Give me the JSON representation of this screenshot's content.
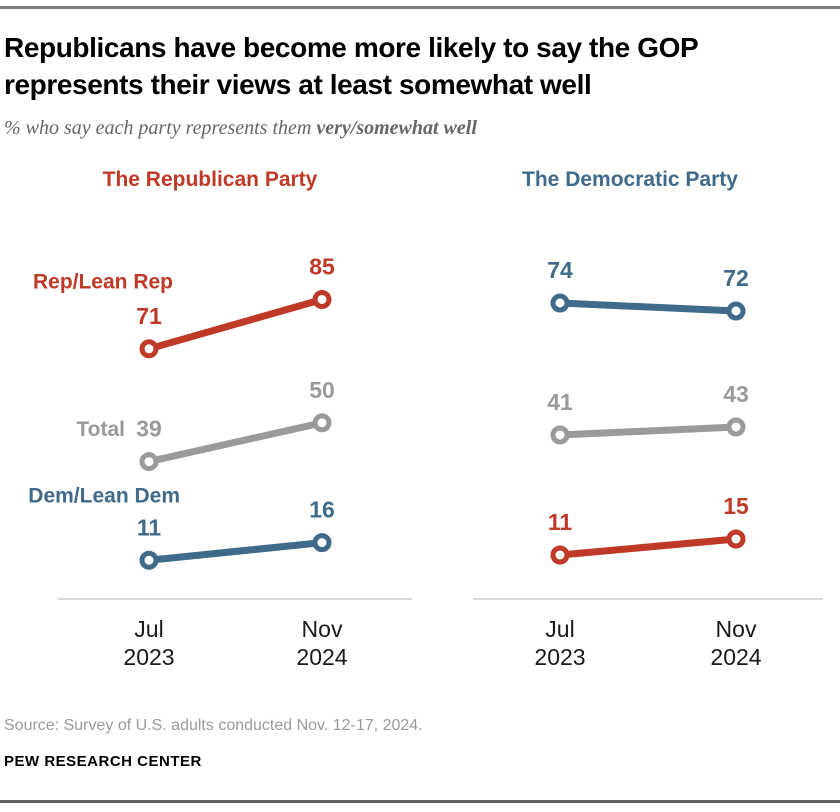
{
  "header": {
    "title": "Republicans have become more likely to say the GOP represents their views at least somewhat well",
    "subtitle_plain": "% who say each party represents them ",
    "subtitle_bold": "very/somewhat well"
  },
  "chart_data": [
    {
      "type": "line",
      "title": "The Republican Party",
      "title_color": "#bf3927",
      "x_labels": [
        [
          "Jul",
          "2023"
        ],
        [
          "Nov",
          "2024"
        ]
      ],
      "ylim": [
        0,
        126
      ],
      "grid": false,
      "series": [
        {
          "name": "Rep/Lean Rep",
          "color": "#bf3927",
          "values": [
            71,
            85
          ],
          "label_shown": true
        },
        {
          "name": "Total",
          "color": "#9a9a9a",
          "values": [
            39,
            50
          ],
          "label_shown": true
        },
        {
          "name": "Dem/Lean Dem",
          "color": "#3f6a8a",
          "values": [
            11,
            16
          ],
          "label_shown": true
        }
      ]
    },
    {
      "type": "line",
      "title": "The Democratic Party",
      "title_color": "#3f6a8a",
      "x_labels": [
        [
          "Jul",
          "2023"
        ],
        [
          "Nov",
          "2024"
        ]
      ],
      "ylim": [
        0,
        111
      ],
      "grid": false,
      "series": [
        {
          "name": "Dem/Lean Dem",
          "color": "#3f6a8a",
          "values": [
            74,
            72
          ],
          "label_shown": false
        },
        {
          "name": "Total",
          "color": "#9a9a9a",
          "values": [
            41,
            43
          ],
          "label_shown": false
        },
        {
          "name": "Rep/Lean Rep",
          "color": "#bf3927",
          "values": [
            11,
            15
          ],
          "label_shown": false
        }
      ]
    }
  ],
  "footer": {
    "source": "Source: Survey of U.S. adults conducted Nov. 12-17, 2024.",
    "brand": "PEW RESEARCH CENTER"
  }
}
